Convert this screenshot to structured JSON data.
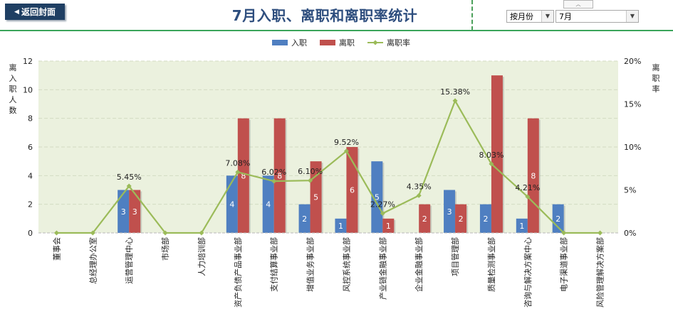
{
  "header": {
    "back_button": "返回封面",
    "title": "7月入职、离职和离职率统计",
    "select_period": "按月份",
    "select_month": "7月"
  },
  "chart_data": {
    "type": "bar",
    "categories": [
      "董事会",
      "总经理办公室",
      "运营管理中心",
      "市场部",
      "人力培训部",
      "资产负债产品事业部",
      "支付结算事业部",
      "增值业务事业部",
      "风控系统事业部",
      "产业链金融事业部",
      "企业金融事业部",
      "项目管理部",
      "质量检测事业部",
      "咨询与解决方案中心",
      "电子渠道事业部",
      "风险管理解决方案部"
    ],
    "series": [
      {
        "name": "入职",
        "kind": "bar",
        "axis": "left",
        "color": "#4f7fc1",
        "values": [
          0,
          0,
          3,
          0,
          0,
          4,
          4,
          2,
          1,
          5,
          0,
          3,
          2,
          1,
          2,
          0
        ]
      },
      {
        "name": "离职",
        "kind": "bar",
        "axis": "left",
        "color": "#c0504d",
        "values": [
          0,
          0,
          3,
          0,
          0,
          8,
          8,
          5,
          6,
          1,
          2,
          2,
          11,
          8,
          0,
          0
        ]
      },
      {
        "name": "离职率",
        "kind": "line",
        "axis": "right",
        "color": "#9bbb59",
        "values": [
          0,
          0,
          5.45,
          0,
          0,
          7.08,
          6.02,
          6.1,
          9.52,
          2.27,
          4.35,
          15.38,
          8.03,
          4.21,
          0,
          0
        ]
      }
    ],
    "bar_labels": {
      "入职": [
        "",
        "",
        "3",
        "",
        "",
        "4",
        "4",
        "2",
        "1",
        "5",
        "",
        "3",
        "2",
        "1",
        "2",
        ""
      ],
      "离职": [
        "",
        "",
        "3",
        "",
        "",
        "8",
        "8",
        "5",
        "6",
        "1",
        "2",
        "2",
        "",
        "8",
        "",
        ""
      ]
    },
    "line_labels": [
      "",
      "",
      "5.45%",
      "",
      "",
      "7.08%",
      "6.02%",
      "6.10%",
      "9.52%",
      "2.27%",
      "4.35%",
      "15.38%",
      "8.03%",
      "4.21%",
      "",
      ""
    ],
    "ylabel_left": "离入职人数",
    "ylabel_right": "离职率",
    "ylim_left": [
      0,
      12
    ],
    "yticks_left": [
      "0",
      "2",
      "4",
      "6",
      "8",
      "10",
      "12"
    ],
    "ylim_right": [
      0,
      20
    ],
    "yticks_right": [
      "0%",
      "5%",
      "10%",
      "15%",
      "20%"
    ],
    "grid": true,
    "legend_position": "top",
    "plot_background": "#ebf1de"
  }
}
